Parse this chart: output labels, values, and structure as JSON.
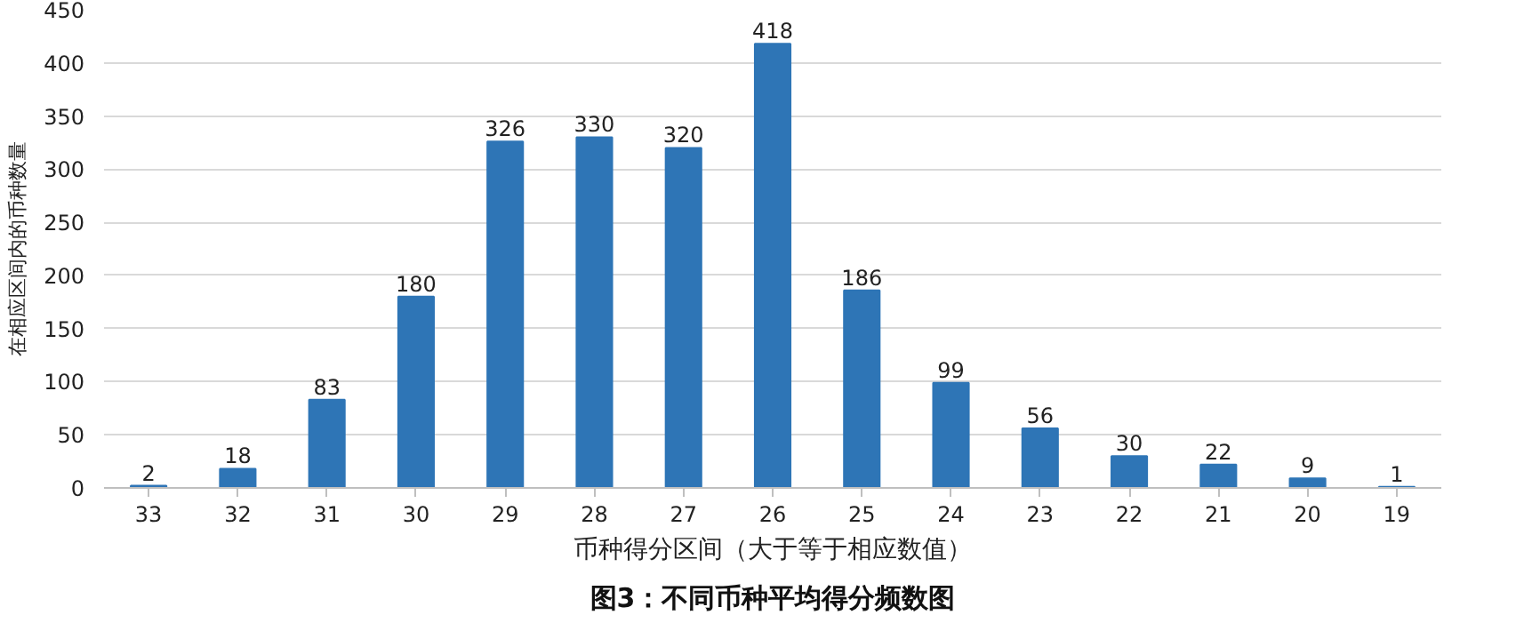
{
  "chart_data": {
    "type": "bar",
    "title": "图3：不同币种平均得分频数图",
    "xlabel": "币种得分区间（大于等于相应数值）",
    "ylabel": "在相应区间内的币种数量",
    "categories": [
      "33",
      "32",
      "31",
      "30",
      "29",
      "28",
      "27",
      "26",
      "25",
      "24",
      "23",
      "22",
      "21",
      "20",
      "19"
    ],
    "values": [
      2,
      18,
      83,
      180,
      326,
      330,
      320,
      418,
      186,
      99,
      56,
      30,
      22,
      9,
      1
    ],
    "color": "#2e75b6",
    "ylim": [
      0,
      450
    ],
    "yticks": [
      0,
      50,
      100,
      150,
      200,
      250,
      300,
      350,
      400,
      450
    ],
    "grid": "y",
    "data_labels": true
  }
}
